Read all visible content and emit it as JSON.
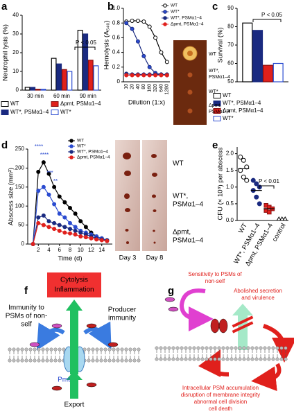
{
  "panels": [
    "a",
    "b",
    "c",
    "d",
    "e",
    "f",
    "g"
  ],
  "chart_data": [
    {
      "type": "bar",
      "ylabel": "Neutrophil lysis (%)",
      "categories": [
        "30 min",
        "60 min",
        "90 min"
      ],
      "series": [
        {
          "name": "WT",
          "color": "#ffffff",
          "edgecolor": "#000000",
          "values": [
            1.5,
            17,
            32
          ]
        },
        {
          "name": "WT*, PSMα1–4",
          "color": "#1a2a80",
          "edgecolor": "#1a2a80",
          "values": [
            1.5,
            14,
            30
          ]
        },
        {
          "name": "Δpmt, PSMα1–4",
          "color": "#e0201c",
          "edgecolor": "#8a1010",
          "values": [
            0.5,
            11,
            16
          ]
        },
        {
          "name": "WT*",
          "color": "#ffffff",
          "edgecolor": "#2a4bd0",
          "values": [
            0.5,
            10,
            13
          ]
        }
      ],
      "ylim": [
        0,
        40
      ],
      "yticks": [
        0,
        10,
        20,
        30,
        40
      ],
      "legend": "bottom",
      "annotations": [
        "P < 0.05"
      ]
    },
    {
      "type": "line",
      "ylabel": "Hemolysis (A₅₄₀)",
      "xlabel": "Dilution (1:x)",
      "categories": [
        "10",
        "20",
        "40",
        "80",
        "160",
        "320",
        "640",
        "1280"
      ],
      "series": [
        {
          "name": "WT",
          "color": "#ffffff",
          "edgecolor": "#000000",
          "values": [
            0.82,
            0.83,
            0.83,
            0.82,
            0.75,
            0.6,
            0.4,
            0.27
          ]
        },
        {
          "name": "WT*",
          "color": "#2a4bd0",
          "edgecolor": "#1a2a80",
          "values": [
            0.8,
            0.72,
            0.55,
            0.35,
            0.2,
            0.12,
            0.1,
            0.09
          ]
        },
        {
          "name": "WT*, PSMα1–4",
          "color": "#1a2a80",
          "edgecolor": "#1a2a80",
          "values": [
            0.11,
            0.1,
            0.1,
            0.1,
            0.1,
            0.1,
            0.1,
            0.1
          ]
        },
        {
          "name": "Δpmt, PSMα1–4",
          "color": "#e0201c",
          "edgecolor": "#e0201c",
          "values": [
            0.09,
            0.09,
            0.09,
            0.09,
            0.09,
            0.09,
            0.09,
            0.09
          ]
        }
      ],
      "ylim": [
        0,
        1.0
      ],
      "yticks": [
        {
          "value": 0,
          "label": "0"
        },
        0.2,
        0.4,
        0.6,
        0.8,
        {
          "value": 1.0,
          "label": "1.0"
        }
      ],
      "legend": "top right",
      "image_labels": [
        [
          "WT"
        ],
        [
          "WT*,",
          "PSMα1–4"
        ],
        [
          "WT*"
        ],
        [
          "Δpmt,",
          "PSMα1–4"
        ]
      ]
    },
    {
      "type": "bar",
      "ylabel": "Survival (%)",
      "categories": [
        null
      ],
      "series": [
        {
          "name": "WT",
          "color": "#ffffff",
          "edgecolor": "#000000",
          "values": [
            82
          ]
        },
        {
          "name": "WT*, PSMα1–4",
          "color": "#1a2a80",
          "edgecolor": "#1a2a80",
          "values": [
            78
          ]
        },
        {
          "name": "Δpmt, PSMα1–4",
          "color": "#e0201c",
          "edgecolor": "#8a1010",
          "values": [
            59
          ]
        },
        {
          "name": "WT*",
          "color": "#ffffff",
          "edgecolor": "#2a4bd0",
          "values": [
            60
          ]
        }
      ],
      "ylim": [
        50,
        90
      ],
      "yticks": [
        50,
        60,
        70,
        80,
        90
      ],
      "legend": "bottom",
      "annotations": [
        "P < 0.05"
      ]
    },
    {
      "type": "line",
      "ylabel": "Abscess size (mm²)",
      "xlabel": "Time (d)",
      "x": [
        1,
        2,
        3,
        4,
        5,
        6,
        7,
        8,
        9,
        10,
        11,
        12,
        13,
        14,
        15
      ],
      "series": [
        {
          "name": "WT",
          "color": "#000000",
          "edgecolor": "#000000",
          "values": [
            0,
            190,
            215,
            185,
            150,
            125,
            110,
            95,
            80,
            60,
            45,
            30,
            20,
            15,
            10
          ]
        },
        {
          "name": "WT*",
          "color": "#2a4bd0",
          "edgecolor": "#2a4bd0",
          "values": [
            0,
            140,
            150,
            130,
            105,
            80,
            70,
            55,
            45,
            35,
            30,
            25,
            20,
            15,
            10
          ]
        },
        {
          "name": "WT*, PSMα1–4",
          "color": "#1a2a80",
          "edgecolor": "#1a2a80",
          "values": [
            0,
            70,
            75,
            60,
            55,
            50,
            45,
            40,
            35,
            30,
            25,
            20,
            15,
            12,
            10
          ]
        },
        {
          "name": "Δpmt, PSMα1–4",
          "color": "#e0201c",
          "edgecolor": "#e0201c",
          "values": [
            0,
            55,
            50,
            45,
            40,
            35,
            30,
            28,
            25,
            20,
            18,
            15,
            12,
            10,
            8
          ]
        }
      ],
      "xlim": [
        0,
        16
      ],
      "xticks": [
        2,
        4,
        6,
        8,
        10,
        12,
        14
      ],
      "ylim": [
        0,
        250
      ],
      "yticks": [
        0,
        50,
        100,
        150,
        200,
        250
      ],
      "legend": "top right",
      "annotations": [
        "****",
        "****",
        "***",
        "**"
      ],
      "image_labels": [
        [
          "WT"
        ],
        [
          "WT*,",
          "PSMα1–4"
        ],
        [
          "Δpmt,",
          "PSMα1–4"
        ]
      ],
      "image_captions": [
        "Day 3",
        "Day 8"
      ]
    },
    {
      "type": "dot",
      "ylabel": "CFU (× 10⁸) per abscess",
      "categories": [
        "WT",
        "WT*, PSMα1–4",
        "Δpmt, PSMα1–4",
        "control"
      ],
      "colors": [
        "#ffffff",
        "#1a2a80",
        "#e0201c",
        "#ffffff"
      ],
      "edgecolors": [
        "#000000",
        "#1a2a80",
        "#8a1010",
        "#000000"
      ],
      "markers": [
        "o",
        "o",
        "s",
        "^"
      ],
      "points": [
        [
          1.9,
          1.8,
          1.6,
          1.5,
          1.3,
          1.2
        ],
        [
          1.2,
          1.1,
          1.0,
          0.9,
          0.7,
          0.5
        ],
        [
          0.45,
          0.4,
          0.35,
          0.3,
          0.25
        ],
        [
          0,
          0,
          0
        ]
      ],
      "means": [
        1.55,
        0.9,
        0.35,
        0
      ],
      "ylim": [
        0,
        2.2
      ],
      "yticks": [
        {
          "value": 0,
          "label": "0.0"
        },
        0.5,
        {
          "value": 1,
          "label": "1.0"
        },
        1.5,
        {
          "value": 2,
          "label": "2.0"
        }
      ],
      "annotations": [
        "P < 0.01"
      ]
    }
  ],
  "diagrams": {
    "f": {
      "box": [
        "Cytolysis",
        "Inflammation"
      ],
      "left": [
        "Immunity to",
        "PSMs of non-",
        "self"
      ],
      "right": [
        "Producer",
        "immunity"
      ],
      "transporter": "Pmt",
      "bottom": "Export"
    },
    "g": {
      "top": [
        "Sensitivity to PSMs of",
        "non-self"
      ],
      "right": [
        "Abolished secretion",
        "and virulence"
      ],
      "bottom": [
        "Intracellular PSM accumulation",
        "disruption of membrane integrity",
        "abnormal cell division",
        "cell death"
      ]
    }
  }
}
